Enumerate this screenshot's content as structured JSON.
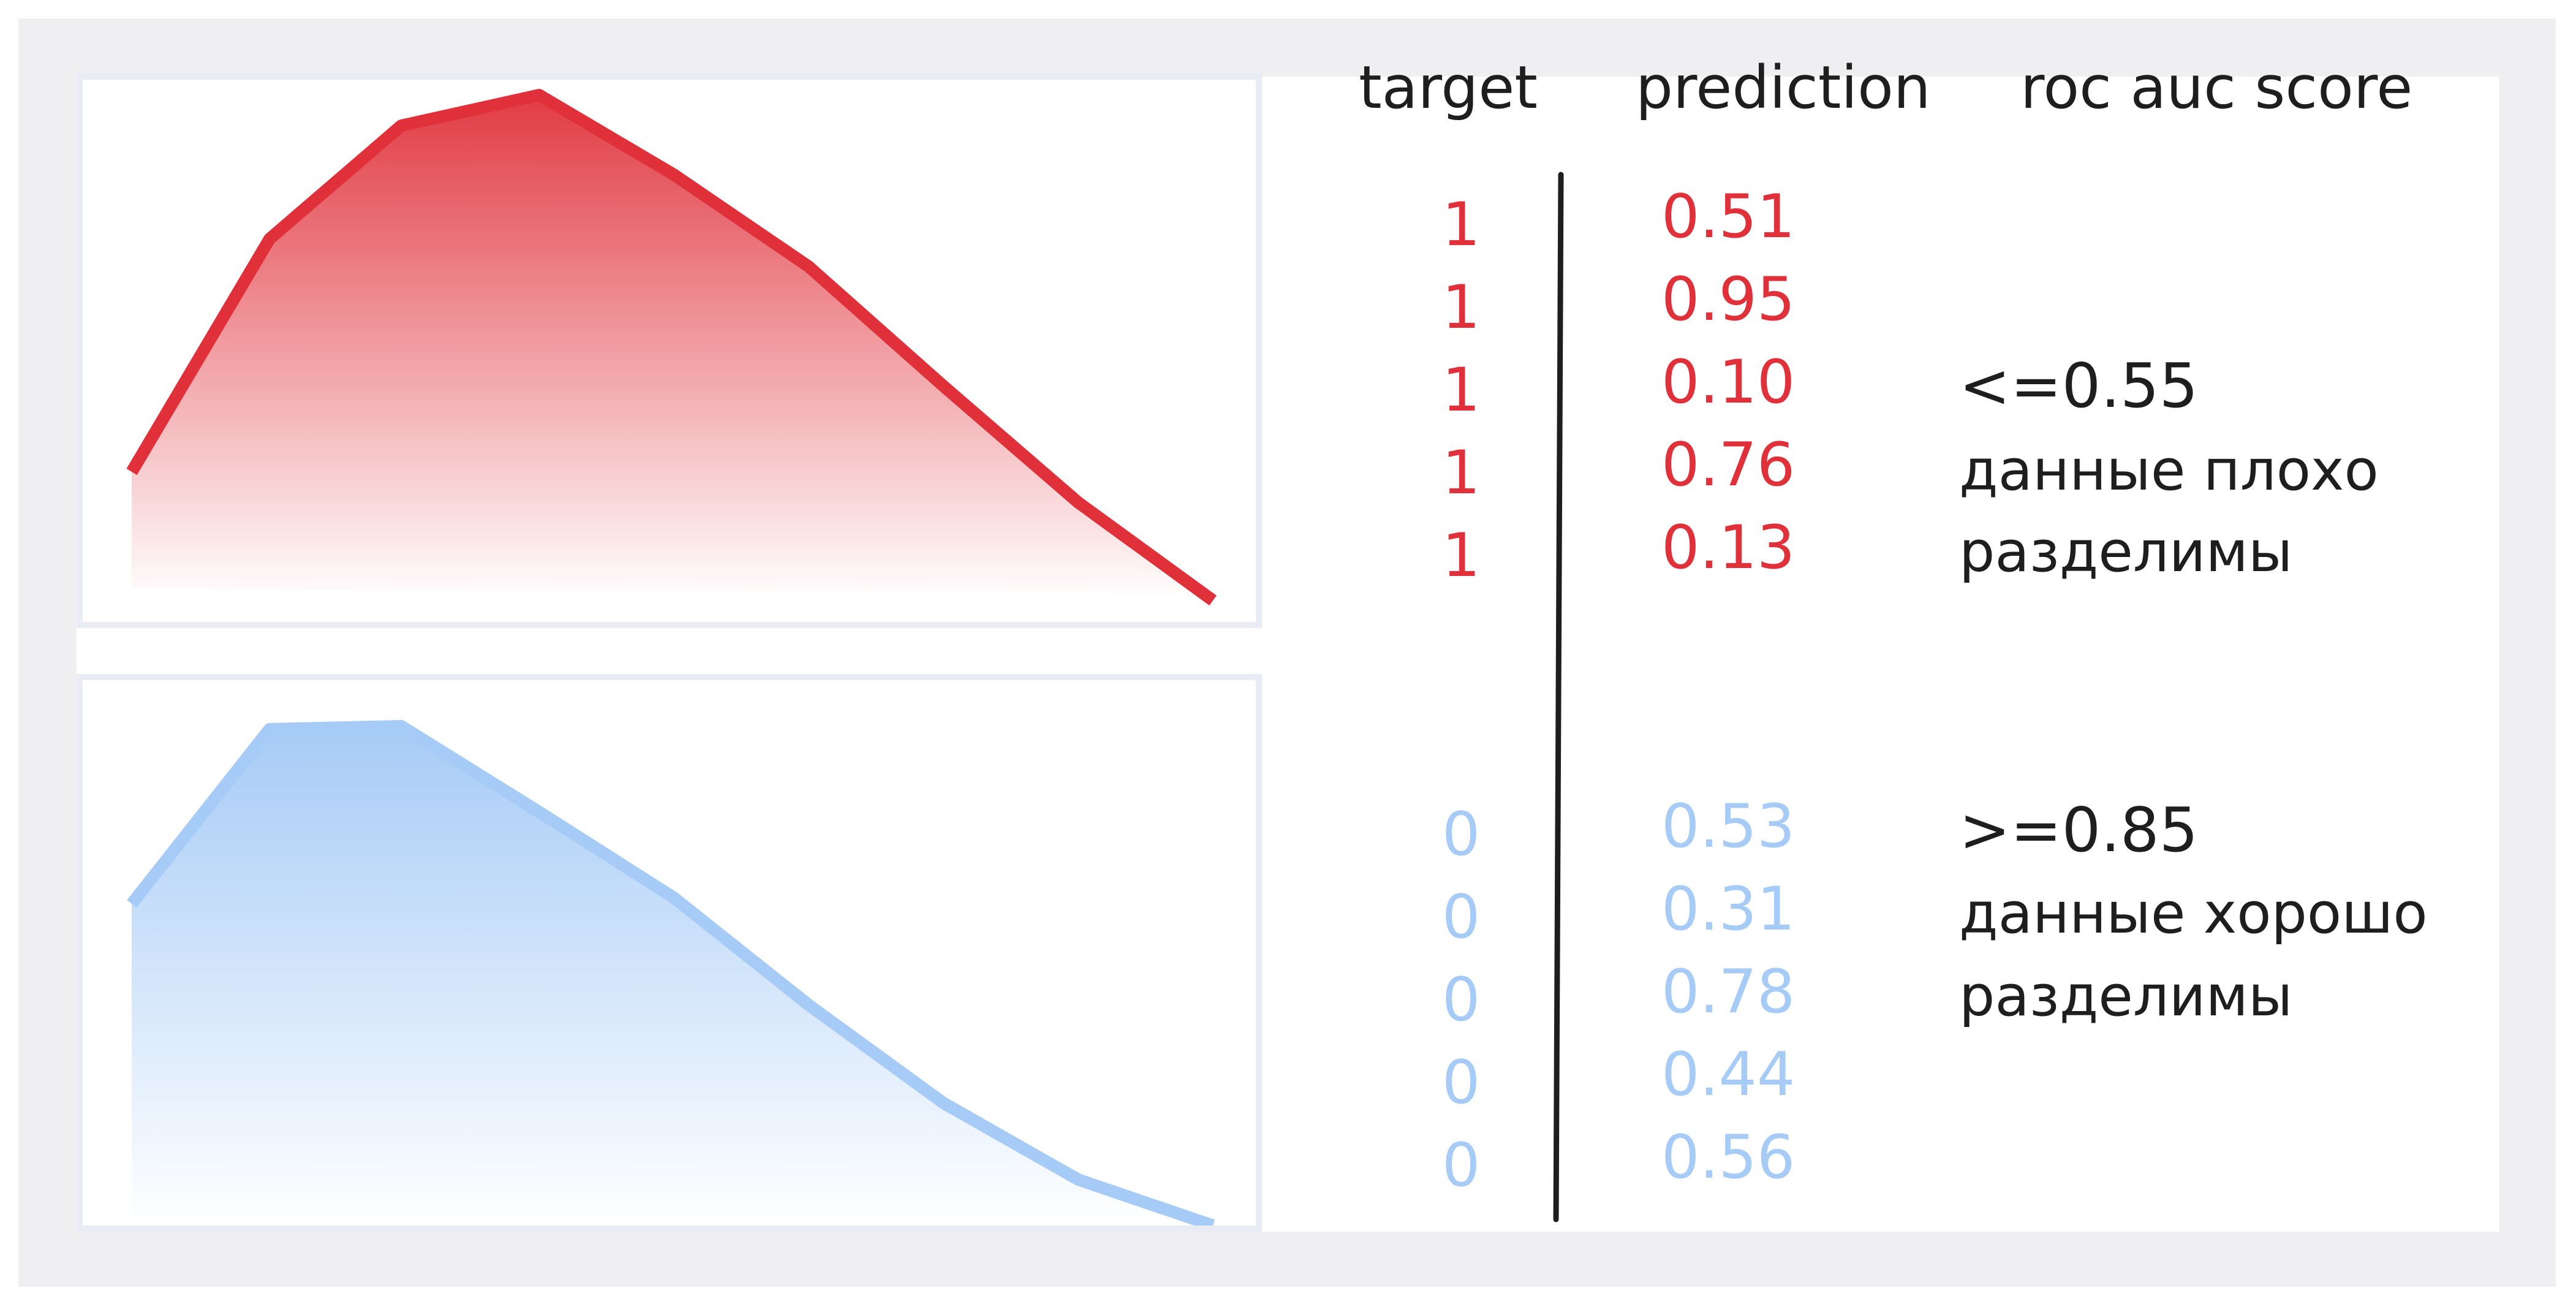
{
  "headers": {
    "target": "target",
    "prediction": "prediction",
    "score": "roc auc score"
  },
  "positive_class": {
    "color": "#e0313a",
    "rows": [
      {
        "target": "1",
        "prediction": "0.51"
      },
      {
        "target": "1",
        "prediction": "0.95"
      },
      {
        "target": "1",
        "prediction": "0.10"
      },
      {
        "target": "1",
        "prediction": "0.76"
      },
      {
        "target": "1",
        "prediction": "0.13"
      }
    ]
  },
  "negative_class": {
    "color": "#a6cbf6",
    "rows": [
      {
        "target": "0",
        "prediction": "0.53"
      },
      {
        "target": "0",
        "prediction": "0.31"
      },
      {
        "target": "0",
        "prediction": "0.78"
      },
      {
        "target": "0",
        "prediction": "0.44"
      },
      {
        "target": "0",
        "prediction": "0.56"
      }
    ]
  },
  "notes": {
    "poor": {
      "threshold": "<=0.55",
      "line1": "данные плохо",
      "line2": "разделимы"
    },
    "good": {
      "threshold": ">=0.85",
      "line1": "данные хорошо",
      "line2": "разделимы"
    }
  }
}
